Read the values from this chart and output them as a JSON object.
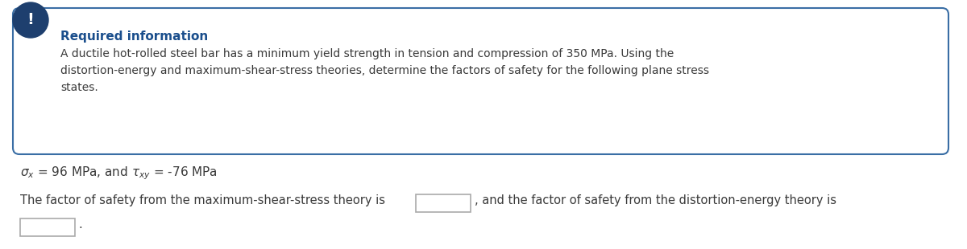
{
  "required_info_label": "Required information",
  "required_info_text": "A ductile hot-rolled steel bar has a minimum yield strength in tension and compression of 350 MPa. Using the\ndistortion-energy and maximum-shear-stress theories, determine the factors of safety for the following plane stress\nstates.",
  "question_line": "The factor of safety from the maximum-shear-stress theory is",
  "question_line2": ", and the factor of safety from the distortion-energy theory is",
  "period": ".",
  "box_border_color": "#3a6ea5",
  "box_bg_color": "#ffffff",
  "icon_bg_color": "#1e3f6e",
  "icon_text_color": "#ffffff",
  "icon_label": "!",
  "required_label_color": "#1a4e8c",
  "body_text_color": "#3a3a3a",
  "fig_bg_color": "#ffffff",
  "input_box_border": "#aaaaaa",
  "input_box_bg": "#ffffff"
}
